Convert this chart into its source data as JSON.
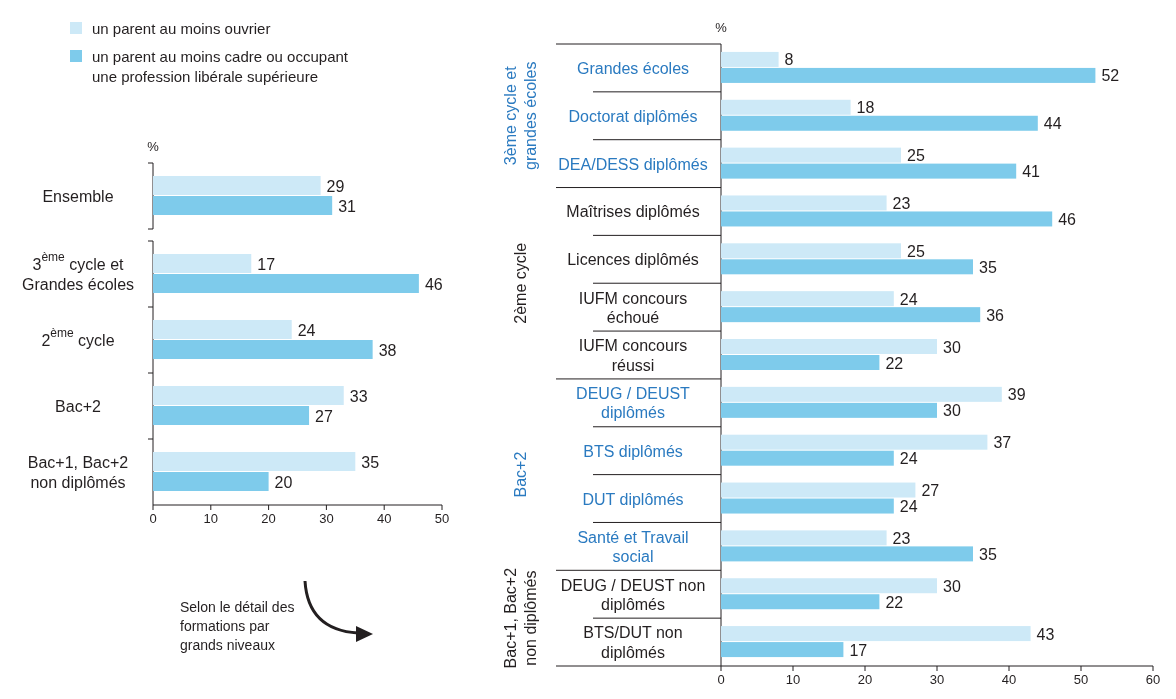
{
  "chart_data": [
    {
      "type": "bar",
      "orientation": "horizontal",
      "categories": [
        "Ensemble",
        "3$^{ème}$ cycle et Grandes écoles",
        "2$^{ème}$ cycle",
        "Bac+2",
        "Bac+1, Bac+2 non diplômés"
      ],
      "series": [
        {
          "name": "un parent au moins ouvrier",
          "color": "#cde9f7",
          "values": [
            29,
            17,
            24,
            33,
            35
          ]
        },
        {
          "name": "un parent au moins cadre ou occupant une profession libérale supérieure",
          "color": "#7ecbeb",
          "values": [
            31,
            46,
            38,
            27,
            20
          ]
        }
      ],
      "xlabel": "%",
      "xlim": [
        0,
        50
      ],
      "xticks": [
        0,
        10,
        20,
        30,
        40,
        50
      ],
      "data_labels": true,
      "legend": "top left",
      "grid": false,
      "annotations": [
        "Selon le détail des formations par grands niveaux"
      ]
    },
    {
      "type": "bar",
      "orientation": "horizontal",
      "categories": [
        "Grandes écoles",
        "Doctorat diplômés",
        "DEA/DESS diplômés",
        "Maîtrises diplômés",
        "Licences diplômés",
        "IUFM concours échoué",
        "IUFM concours réussi",
        "DEUG / DEUST diplômés",
        "BTS diplômés",
        "DUT diplômés",
        "Santé et Travail social",
        "DEUG / DEUST non diplômés",
        "BTS/DUT non diplômés"
      ],
      "series": [
        {
          "color": "#cde9f7",
          "values": [
            8,
            18,
            25,
            23,
            25,
            24,
            30,
            39,
            37,
            27,
            23,
            30,
            43
          ]
        },
        {
          "color": "#7ecbeb",
          "values": [
            52,
            44,
            41,
            46,
            35,
            36,
            22,
            30,
            24,
            24,
            35,
            22,
            17
          ]
        }
      ],
      "xlabel": "%",
      "xlim": [
        0,
        60
      ],
      "xticks": [
        0,
        10,
        20,
        30,
        40,
        50,
        60
      ],
      "data_labels": true,
      "grid": false,
      "annotations": [
        "3ème cycle et grandes écoles",
        "2ème cycle",
        "Bac+2",
        "Bac+1, Bac+2 non diplômés"
      ]
    }
  ]
}
